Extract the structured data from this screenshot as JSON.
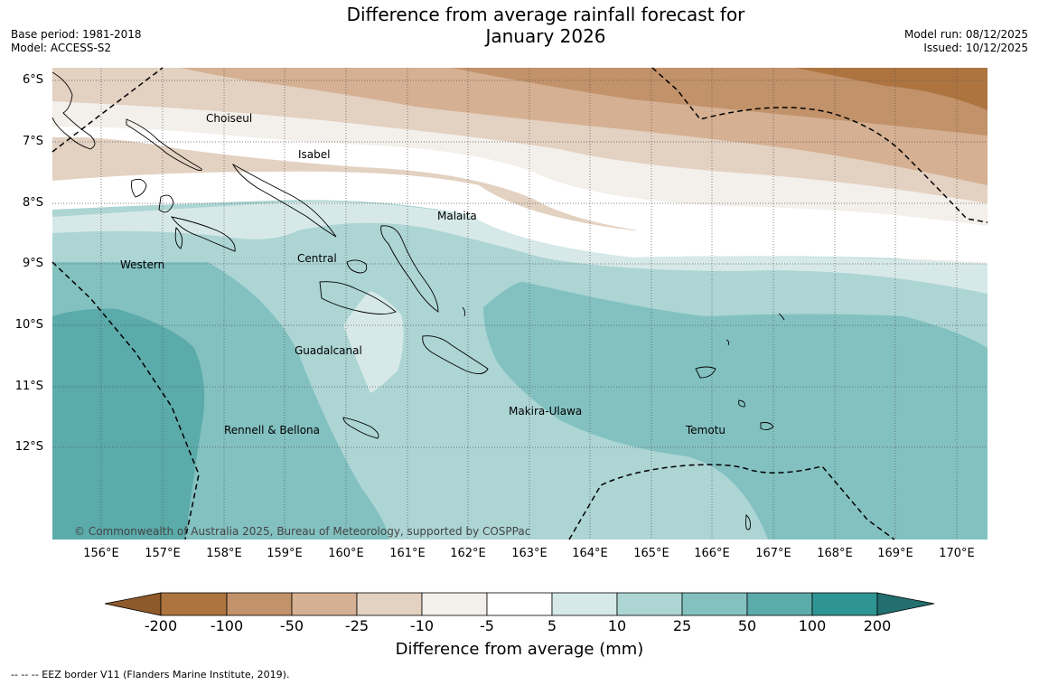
{
  "title_line1": "Difference from average rainfall forecast for",
  "title_line2": "January 2026",
  "left_meta": {
    "base_period": "Base period: 1981-2018",
    "model": "Model: ACCESS-S2"
  },
  "right_meta": {
    "model_run": "Model run: 08/12/2025",
    "issued": "Issued: 10/12/2025"
  },
  "map": {
    "lat_ticks": [
      "6°S",
      "7°S",
      "8°S",
      "9°S",
      "10°S",
      "11°S",
      "12°S"
    ],
    "lon_ticks": [
      "156°E",
      "157°E",
      "158°E",
      "159°E",
      "160°E",
      "161°E",
      "162°E",
      "163°E",
      "164°E",
      "165°E",
      "166°E",
      "167°E",
      "168°E",
      "169°E",
      "170°E"
    ],
    "regions": [
      "Choiseul",
      "Isabel",
      "Malaita",
      "Western",
      "Central",
      "Guadalcanal",
      "Makira-Ulawa",
      "Rennell & Bellona",
      "Temotu"
    ],
    "copyright": "© Commonwealth of Australia 2025, Bureau of Meteorology, supported by COSPPac"
  },
  "colorbar": {
    "labels": [
      "-200",
      "-100",
      "-50",
      "-25",
      "-10",
      "-5",
      "5",
      "10",
      "25",
      "50",
      "100",
      "200"
    ],
    "colors": [
      "#8e5a2b",
      "#ad7440",
      "#c2926a",
      "#d5b092",
      "#e3d1c1",
      "#f3efea",
      "#ffffff",
      "#d6e9e8",
      "#acd5d4",
      "#82c1c0",
      "#5aabaa",
      "#2f9594",
      "#236e6e"
    ],
    "title": "Difference from average (mm)"
  },
  "footnote": "--  --  -- EEZ border V11 (Flanders Marine Institute, 2019)."
}
